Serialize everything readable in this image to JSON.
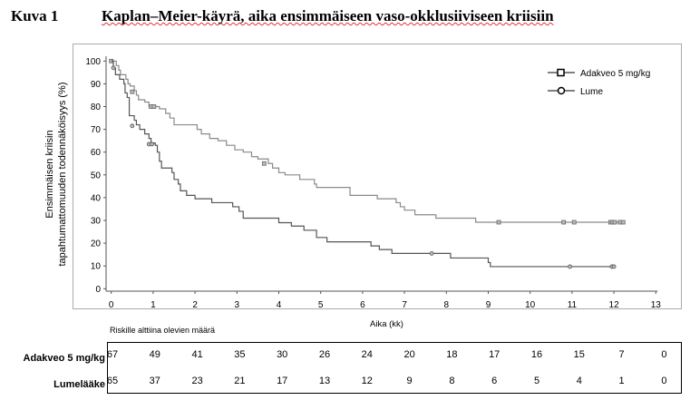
{
  "header": {
    "figure_number": "Kuva 1",
    "title": "Kaplan–Meier-käyrä, aika ensimmäiseen vaso-okklusiiviseen kriisiin"
  },
  "chart_data": {
    "type": "line",
    "subtype": "kaplan-meier step",
    "xlabel": "Aika (kk)",
    "ylabel_lines": [
      "Ensimmäisen kriisin",
      "tapahtumattomuuden todennäköisyys (%)"
    ],
    "xlim": [
      0,
      13
    ],
    "ylim": [
      0,
      100
    ],
    "xticks": [
      "0",
      "1",
      "2",
      "3",
      "4",
      "5",
      "6",
      "7",
      "8",
      "9",
      "10",
      "11",
      "12",
      "13"
    ],
    "yticks": [
      "0",
      "10",
      "20",
      "30",
      "40",
      "50",
      "60",
      "70",
      "80",
      "90",
      "100"
    ],
    "legend_placement": "top-right",
    "series": [
      {
        "name": "Adakveo 5 mg/kg",
        "marker": "square",
        "color": "#8a8a8a",
        "steps": [
          [
            0,
            100
          ],
          [
            0.12,
            98
          ],
          [
            0.18,
            96
          ],
          [
            0.22,
            94
          ],
          [
            0.35,
            92
          ],
          [
            0.4,
            90
          ],
          [
            0.45,
            89
          ],
          [
            0.55,
            87
          ],
          [
            0.6,
            85
          ],
          [
            0.65,
            83
          ],
          [
            0.8,
            82
          ],
          [
            0.9,
            80
          ],
          [
            1.15,
            79
          ],
          [
            1.3,
            77
          ],
          [
            1.4,
            75
          ],
          [
            1.5,
            72
          ],
          [
            2.05,
            70
          ],
          [
            2.15,
            68
          ],
          [
            2.35,
            66
          ],
          [
            2.55,
            65
          ],
          [
            2.75,
            63
          ],
          [
            2.95,
            61
          ],
          [
            3.15,
            60
          ],
          [
            3.35,
            58
          ],
          [
            3.5,
            57
          ],
          [
            3.75,
            55
          ],
          [
            3.85,
            53
          ],
          [
            4.0,
            51
          ],
          [
            4.15,
            50
          ],
          [
            4.5,
            48
          ],
          [
            4.85,
            46
          ],
          [
            4.9,
            44.5
          ],
          [
            5.7,
            41
          ],
          [
            6.35,
            39.5
          ],
          [
            6.8,
            37.8
          ],
          [
            6.9,
            36
          ],
          [
            7.0,
            34.5
          ],
          [
            7.25,
            32.5
          ],
          [
            7.75,
            31
          ],
          [
            8.7,
            29.2
          ],
          [
            12.25,
            29.2
          ]
        ],
        "censored": [
          [
            0,
            100
          ],
          [
            0.5,
            86.5
          ],
          [
            0.95,
            80
          ],
          [
            1.02,
            80
          ],
          [
            3.65,
            55
          ],
          [
            9.25,
            29.2
          ],
          [
            10.8,
            29.2
          ],
          [
            11.05,
            29.2
          ],
          [
            11.92,
            29.2
          ],
          [
            11.97,
            29.2
          ],
          [
            12.02,
            29.2
          ],
          [
            12.15,
            29.2
          ],
          [
            12.22,
            29.2
          ]
        ]
      },
      {
        "name": "Lume",
        "marker": "circle",
        "color": "#555555",
        "steps": [
          [
            0,
            100
          ],
          [
            0.05,
            97
          ],
          [
            0.1,
            94
          ],
          [
            0.2,
            92
          ],
          [
            0.3,
            90
          ],
          [
            0.33,
            86
          ],
          [
            0.38,
            84
          ],
          [
            0.43,
            76
          ],
          [
            0.55,
            74
          ],
          [
            0.6,
            72
          ],
          [
            0.68,
            70
          ],
          [
            0.8,
            68
          ],
          [
            0.9,
            66
          ],
          [
            0.95,
            64
          ],
          [
            1.05,
            63
          ],
          [
            1.1,
            60
          ],
          [
            1.15,
            56
          ],
          [
            1.2,
            53
          ],
          [
            1.45,
            51
          ],
          [
            1.5,
            48
          ],
          [
            1.6,
            46
          ],
          [
            1.65,
            43
          ],
          [
            1.8,
            41
          ],
          [
            2.0,
            39.5
          ],
          [
            2.4,
            37.8
          ],
          [
            2.9,
            36
          ],
          [
            3.05,
            34
          ],
          [
            3.15,
            31
          ],
          [
            4.0,
            29
          ],
          [
            4.3,
            27.5
          ],
          [
            4.6,
            25.7
          ],
          [
            4.9,
            22.5
          ],
          [
            5.15,
            20.6
          ],
          [
            6.2,
            18.8
          ],
          [
            6.4,
            17.2
          ],
          [
            6.7,
            15.5
          ],
          [
            8.1,
            13.5
          ],
          [
            9.0,
            11.5
          ],
          [
            9.05,
            9.7
          ],
          [
            12.05,
            9.7
          ]
        ],
        "censored": [
          [
            0.05,
            97
          ],
          [
            0.5,
            71.5
          ],
          [
            0.9,
            63.5
          ],
          [
            0.97,
            63.5
          ],
          [
            7.65,
            15.5
          ],
          [
            10.95,
            9.7
          ],
          [
            11.95,
            9.7
          ],
          [
            12.0,
            9.7
          ]
        ]
      }
    ]
  },
  "risk_table": {
    "title": "Riskille alttiina olevien määrä",
    "rows": [
      {
        "label": "Adakveo 5 mg/kg",
        "values": [
          "67",
          "49",
          "41",
          "35",
          "30",
          "26",
          "24",
          "20",
          "18",
          "17",
          "16",
          "15",
          "7",
          "0"
        ]
      },
      {
        "label": "Lumelääke",
        "values": [
          "65",
          "37",
          "23",
          "21",
          "17",
          "13",
          "12",
          "9",
          "8",
          "6",
          "5",
          "4",
          "1",
          "0"
        ]
      }
    ]
  }
}
